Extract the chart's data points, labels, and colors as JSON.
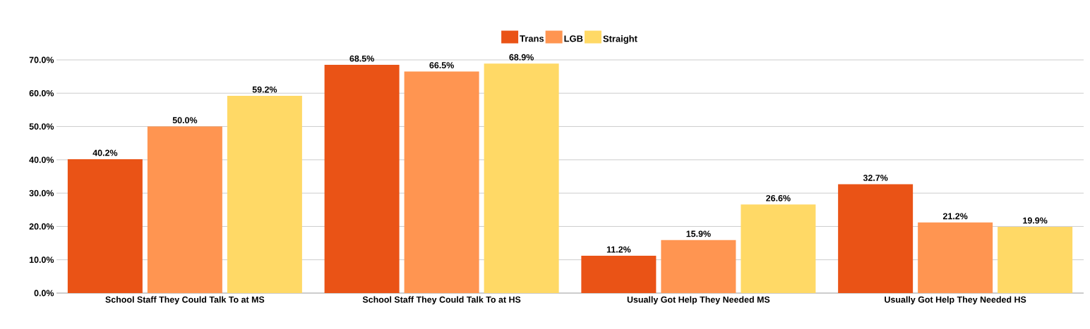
{
  "chart_data": {
    "type": "bar",
    "categories": [
      "School Staff They Could Talk To at MS",
      "School Staff They Could Talk To at HS",
      "Usually Got Help They Needed MS",
      "Usually Got Help They Needed HS"
    ],
    "series": [
      {
        "name": "Trans",
        "color": "#ea5316",
        "values": [
          40.2,
          68.5,
          11.2,
          32.7
        ],
        "value_labels": [
          "40.2%",
          "68.5%",
          "11.2%",
          "32.7%"
        ]
      },
      {
        "name": "LGB",
        "color": "#ff9551",
        "values": [
          50.0,
          66.5,
          15.9,
          21.2
        ],
        "value_labels": [
          "50.0%",
          "66.5%",
          "15.9%",
          "21.2%"
        ]
      },
      {
        "name": "Straight",
        "color": "#ffd966",
        "values": [
          59.2,
          68.9,
          26.6,
          19.9
        ],
        "value_labels": [
          "59.2%",
          "68.9%",
          "26.6%",
          "19.9%"
        ]
      }
    ],
    "ylim": [
      0,
      70
    ],
    "yticks": [
      {
        "value": 0,
        "label": "0.0%"
      },
      {
        "value": 10,
        "label": "10.0%"
      },
      {
        "value": 20,
        "label": "20.0%"
      },
      {
        "value": 30,
        "label": "30.0%"
      },
      {
        "value": 40,
        "label": "40.0%"
      },
      {
        "value": 50,
        "label": "50.0%"
      },
      {
        "value": 60,
        "label": "60.0%"
      },
      {
        "value": 70,
        "label": "70.0%"
      }
    ],
    "grid": "y",
    "legend": "top"
  }
}
